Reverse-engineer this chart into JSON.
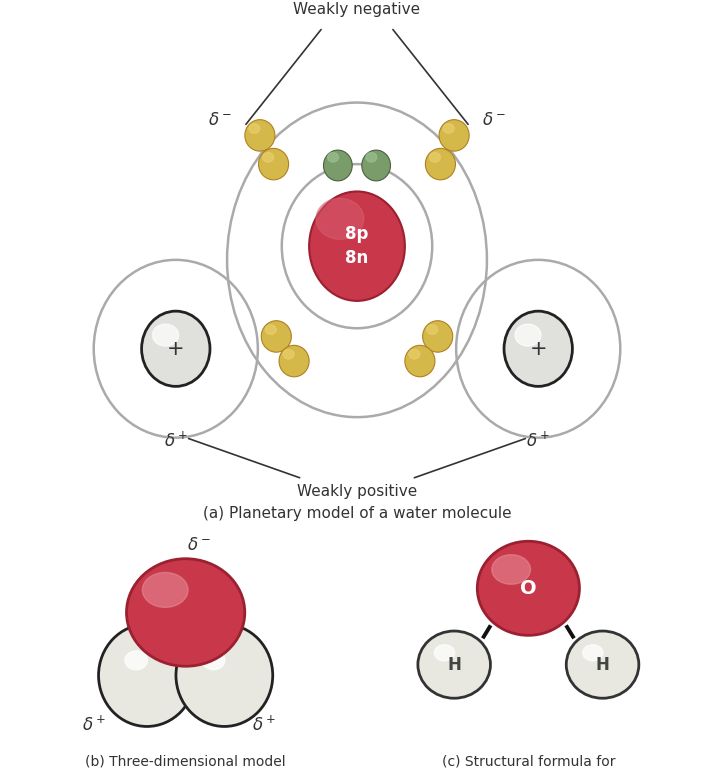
{
  "bg_color": "#FFFFFF",
  "title_a": "(a) Planetary model of a water molecule",
  "title_b": "(b) Three-dimensional model\nof a water molecule",
  "title_c": "(c) Structural formula for\nwater molecule",
  "nucleus_color": "#C8374A",
  "nucleus_text": "8p\n8n",
  "nucleus_text_color": "#ffffff",
  "electron_color": "#D4B84A",
  "electron_green_color": "#7A9B6A",
  "orbit_color": "#AAAAAA",
  "hydrogen_nucleus_color": "#E0E0DC",
  "label_color": "#333333",
  "oxygen_3d_color": "#C8374A",
  "hydrogen_3d_color": "#E8E8E0",
  "bond_color": "#111111",
  "text_color": "#333333",
  "line_color": "#333333"
}
